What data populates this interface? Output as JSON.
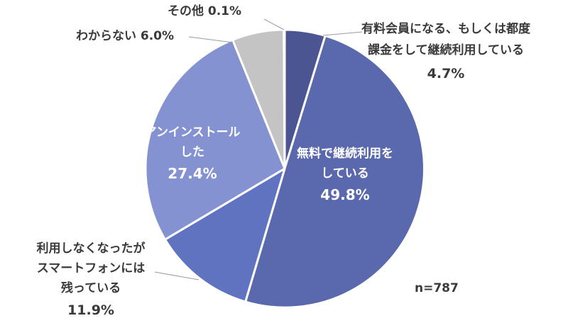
{
  "chart_data": {
    "type": "pie",
    "title": "",
    "sample_size": "n=787",
    "start_angle_deg": 0,
    "direction": "clockwise",
    "slices": [
      {
        "label_lines": [
          "有料会員になる、もしくは都度",
          "課金をして継続利用している"
        ],
        "pct_text": "4.7%",
        "value": 4.7,
        "color": "#4a5591",
        "label_style": "outside"
      },
      {
        "label_lines": [
          "無料で継続利用を",
          "している"
        ],
        "pct_text": "49.8%",
        "value": 49.8,
        "color": "#5a68ad",
        "label_style": "inside"
      },
      {
        "label_lines": [
          "利用しなくなったが",
          "スマートフォンには",
          "残っている"
        ],
        "pct_text": "11.9%",
        "value": 11.9,
        "color": "#5f73c1",
        "label_style": "outside"
      },
      {
        "label_lines": [
          "アンインストール",
          "した"
        ],
        "pct_text": "27.4%",
        "value": 27.4,
        "color": "#8592d2",
        "label_style": "inside"
      },
      {
        "label_lines": [
          "わからない"
        ],
        "pct_text": "6.0%",
        "value": 6.0,
        "color": "#c4c4c4",
        "label_style": "outside-inline"
      },
      {
        "label_lines": [
          "その他"
        ],
        "pct_text": "0.1%",
        "value": 0.1,
        "color": "#9ca0b8",
        "label_style": "outside-inline"
      }
    ]
  }
}
